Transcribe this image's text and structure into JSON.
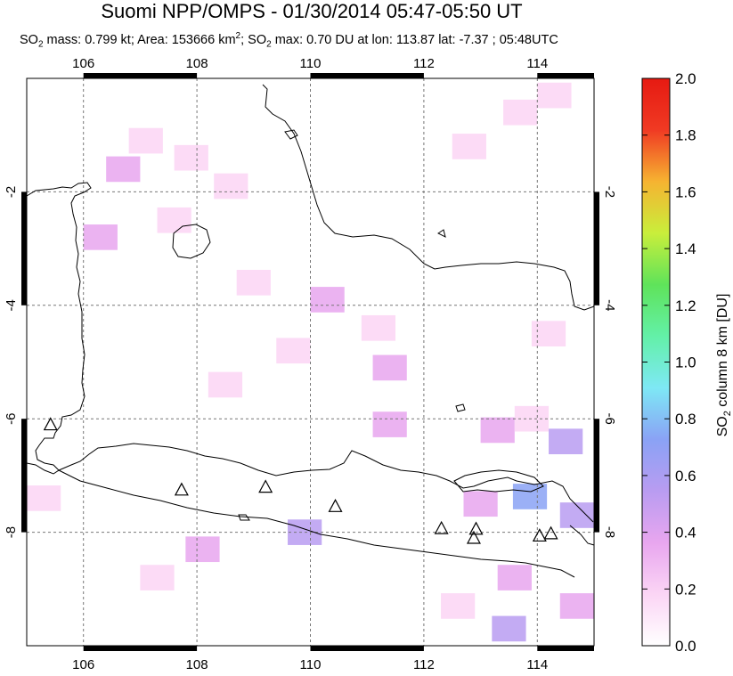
{
  "title": "Suomi NPP/OMPS - 01/30/2014 05:47-05:50 UT",
  "subtitle": {
    "so2_mass_prefix": "SO",
    "so2_mass_sub": "2",
    "so2_mass_text": " mass: 0.799 kt; Area: 153666 km",
    "area_sup": "2",
    "so2_max_prefix": "; SO",
    "so2_max_sub": "2",
    "so2_max_text": " max: 0.70 DU at lon: 113.87 lat: -7.37 ; 05:48UTC"
  },
  "map": {
    "lon_range": [
      105,
      115
    ],
    "lat_range": [
      -10,
      0
    ],
    "lon_ticks": [
      "106",
      "108",
      "110",
      "112",
      "114"
    ],
    "lat_ticks": [
      "-2",
      "-4",
      "-6",
      "-8"
    ],
    "gridlines": "dashed"
  },
  "colorbar": {
    "ticks": [
      "0.0",
      "0.2",
      "0.4",
      "0.6",
      "0.8",
      "1.0",
      "1.2",
      "1.4",
      "1.6",
      "1.8",
      "2.0"
    ],
    "label_prefix": "SO",
    "label_sub": "2",
    "label_suffix": " column 8 km [DU]",
    "colors": [
      "#ffffff",
      "#fbd5f5",
      "#e8a6ef",
      "#b99cf1",
      "#8aa2f5",
      "#7ee8f5",
      "#63f0a8",
      "#5fe35a",
      "#c9ee3b",
      "#f6b331",
      "#f03a23",
      "#e61a12"
    ]
  },
  "volcanoes": [
    {
      "lon": 105.42,
      "lat": -6.1
    },
    {
      "lon": 107.73,
      "lat": -7.25
    },
    {
      "lon": 109.21,
      "lat": -7.2
    },
    {
      "lon": 110.44,
      "lat": -7.54
    },
    {
      "lon": 112.31,
      "lat": -7.93
    },
    {
      "lon": 112.92,
      "lat": -7.94
    },
    {
      "lon": 112.88,
      "lat": -8.1
    },
    {
      "lon": 114.04,
      "lat": -8.06
    },
    {
      "lon": 114.24,
      "lat": -8.02
    }
  ],
  "so2_cells": [
    {
      "lon": 107.1,
      "lat": -1.1,
      "du": 0.25
    },
    {
      "lon": 107.9,
      "lat": -1.4,
      "du": 0.2
    },
    {
      "lon": 106.7,
      "lat": -1.6,
      "du": 0.3
    },
    {
      "lon": 108.6,
      "lat": -1.9,
      "du": 0.15
    },
    {
      "lon": 106.3,
      "lat": -2.8,
      "du": 0.3
    },
    {
      "lon": 107.6,
      "lat": -2.5,
      "du": 0.2
    },
    {
      "lon": 109.0,
      "lat": -3.6,
      "du": 0.25
    },
    {
      "lon": 110.3,
      "lat": -3.9,
      "du": 0.3
    },
    {
      "lon": 111.2,
      "lat": -4.4,
      "du": 0.25
    },
    {
      "lon": 112.8,
      "lat": -1.2,
      "du": 0.25
    },
    {
      "lon": 113.7,
      "lat": -0.6,
      "du": 0.2
    },
    {
      "lon": 114.3,
      "lat": -0.3,
      "du": 0.2
    },
    {
      "lon": 111.4,
      "lat": -5.1,
      "du": 0.3
    },
    {
      "lon": 111.4,
      "lat": -6.1,
      "du": 0.4
    },
    {
      "lon": 113.3,
      "lat": -6.2,
      "du": 0.3
    },
    {
      "lon": 113.9,
      "lat": -6.0,
      "du": 0.25
    },
    {
      "lon": 114.5,
      "lat": -6.4,
      "du": 0.55
    },
    {
      "lon": 113.0,
      "lat": -7.5,
      "du": 0.4
    },
    {
      "lon": 113.87,
      "lat": -7.37,
      "du": 0.7
    },
    {
      "lon": 114.7,
      "lat": -7.7,
      "du": 0.55
    },
    {
      "lon": 109.9,
      "lat": -8.0,
      "du": 0.55
    },
    {
      "lon": 108.1,
      "lat": -8.3,
      "du": 0.3
    },
    {
      "lon": 107.3,
      "lat": -8.8,
      "du": 0.2
    },
    {
      "lon": 105.3,
      "lat": -7.4,
      "du": 0.2
    },
    {
      "lon": 112.6,
      "lat": -9.3,
      "du": 0.25
    },
    {
      "lon": 113.5,
      "lat": -9.7,
      "du": 0.6
    },
    {
      "lon": 114.7,
      "lat": -9.3,
      "du": 0.45
    },
    {
      "lon": 113.6,
      "lat": -8.8,
      "du": 0.3
    },
    {
      "lon": 114.2,
      "lat": -4.5,
      "du": 0.25
    },
    {
      "lon": 108.5,
      "lat": -5.4,
      "du": 0.15
    },
    {
      "lon": 109.7,
      "lat": -4.8,
      "du": 0.2
    }
  ]
}
